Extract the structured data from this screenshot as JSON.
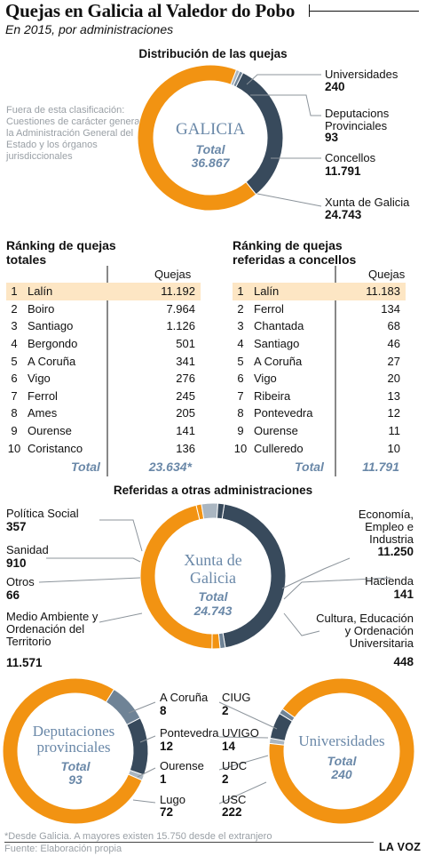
{
  "header": {
    "title": "Quejas en Galicia al Valedor do Pobo",
    "subtitle": "En 2015, por administraciones"
  },
  "colors": {
    "orange": "#f29312",
    "navy": "#384a5c",
    "slate": "#6f8396",
    "light": "#aab6c1",
    "highlight": "#fde6c4",
    "accent_text": "#6a88a8"
  },
  "chart_data": [
    {
      "type": "pie",
      "title": "Distribución de las quejas",
      "center_label": "GALICIA",
      "total_label": "Total",
      "total": "36.867",
      "slices": [
        {
          "name": "Xunta de Galicia",
          "value": 24743,
          "value_label": "24.743",
          "color": "#f29312"
        },
        {
          "name": "Concellos",
          "value": 11791,
          "value_label": "11.791",
          "color": "#384a5c"
        },
        {
          "name": "Deputacions Provinciales",
          "value": 93,
          "value_label": "93",
          "color": "#6f8396"
        },
        {
          "name": "Universidades",
          "value": 240,
          "value_label": "240",
          "color": "#aab6c1"
        }
      ]
    },
    {
      "type": "table",
      "title": "Ránking de quejas totales",
      "column": "Quejas",
      "rows": [
        {
          "rank": "1",
          "name": "Lalín",
          "value": "11.192"
        },
        {
          "rank": "2",
          "name": "Boiro",
          "value": "7.964"
        },
        {
          "rank": "3",
          "name": "Santiago",
          "value": "1.126"
        },
        {
          "rank": "4",
          "name": "Bergondo",
          "value": "501"
        },
        {
          "rank": "5",
          "name": "A Coruña",
          "value": "341"
        },
        {
          "rank": "6",
          "name": "Vigo",
          "value": "276"
        },
        {
          "rank": "7",
          "name": "Ferrol",
          "value": "245"
        },
        {
          "rank": "8",
          "name": "Ames",
          "value": "205"
        },
        {
          "rank": "9",
          "name": "Ourense",
          "value": "141"
        },
        {
          "rank": "10",
          "name": "Coristanco",
          "value": "136"
        }
      ],
      "total_label": "Total",
      "total": "23.634*"
    },
    {
      "type": "table",
      "title": "Ránking de quejas referidas a concellos",
      "column": "Quejas",
      "rows": [
        {
          "rank": "1",
          "name": "Lalín",
          "value": "11.183"
        },
        {
          "rank": "2",
          "name": "Ferrol",
          "value": "134"
        },
        {
          "rank": "3",
          "name": "Chantada",
          "value": "68"
        },
        {
          "rank": "4",
          "name": "Santiago",
          "value": "46"
        },
        {
          "rank": "5",
          "name": "A Coruña",
          "value": "27"
        },
        {
          "rank": "6",
          "name": "Vigo",
          "value": "20"
        },
        {
          "rank": "7",
          "name": "Ribeira",
          "value": "13"
        },
        {
          "rank": "8",
          "name": "Pontevedra",
          "value": "12"
        },
        {
          "rank": "9",
          "name": "Ourense",
          "value": "11"
        },
        {
          "rank": "10",
          "name": "Culleredo",
          "value": "10"
        }
      ],
      "total_label": "Total",
      "total": "11.791"
    },
    {
      "type": "pie",
      "section_title": "Referidas a  otras administraciones",
      "center_label": "Xunta de Galicia",
      "total_label": "Total",
      "total": "24.743",
      "slices": [
        {
          "name": "Economía, Empleo e Industria",
          "value": 11250,
          "value_label": "11.250",
          "color": "#384a5c"
        },
        {
          "name": "Hacienda",
          "value": 141,
          "value_label": "141",
          "color": "#6f8396"
        },
        {
          "name": "Cultura, Educación y Ordenación Universitaria",
          "value": 448,
          "value_label": "448",
          "color": "#f29312"
        },
        {
          "name": "Medio Ambiente y Ordenación del Territorio",
          "value": 11571,
          "value_label": "11.571",
          "color": "#f29312"
        },
        {
          "name": "Otros",
          "value": 66,
          "value_label": "66",
          "color": "#f29312"
        },
        {
          "name": "Sanidad",
          "value": 910,
          "value_label": "910",
          "color": "#aab6c1"
        },
        {
          "name": "Política Social",
          "value": 357,
          "value_label": "357",
          "color": "#384a5c"
        }
      ]
    },
    {
      "type": "pie",
      "center_label": "Deputaciones provinciales",
      "total_label": "Total",
      "total": "93",
      "slices": [
        {
          "name": "A Coruña",
          "value": 8,
          "value_label": "8",
          "color": "#6f8396"
        },
        {
          "name": "Pontevedra",
          "value": 12,
          "value_label": "12",
          "color": "#384a5c"
        },
        {
          "name": "Ourense",
          "value": 1,
          "value_label": "1",
          "color": "#aab6c1"
        },
        {
          "name": "Lugo",
          "value": 72,
          "value_label": "72",
          "color": "#f29312"
        }
      ]
    },
    {
      "type": "pie",
      "center_label": "Universidades",
      "total_label": "Total",
      "total": "240",
      "slices": [
        {
          "name": "CIUG",
          "value": 2,
          "value_label": "2",
          "color": "#aab6c1"
        },
        {
          "name": "UVIGO",
          "value": 14,
          "value_label": "14",
          "color": "#384a5c"
        },
        {
          "name": "UDC",
          "value": 2,
          "value_label": "2",
          "color": "#6f8396"
        },
        {
          "name": "USC",
          "value": 222,
          "value_label": "222",
          "color": "#f29312"
        }
      ]
    }
  ],
  "note": "Fuera de esta clasificación: Cuestiones de carácter general, la Administración General del Estado y los órganos jurisdiccionales",
  "footer": {
    "footnote": "*Desde Galicia. A mayores existen 15.750 desde el extranjero",
    "source": "Fuente: Elaboración propia",
    "brand": "LA VOZ"
  }
}
